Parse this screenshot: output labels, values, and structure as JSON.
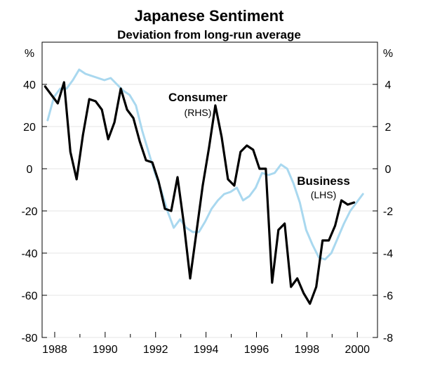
{
  "chart_data": {
    "type": "line",
    "title": "Japanese Sentiment",
    "subtitle": "Deviation from long-run average",
    "left_axis": {
      "unit": "%",
      "range": [
        -80,
        40
      ],
      "ticks": [
        40,
        20,
        0,
        -20,
        -40,
        -60,
        -80
      ],
      "tick_labels": [
        "40",
        "20",
        "0",
        "-20",
        "-40",
        "-60",
        "-80"
      ]
    },
    "right_axis": {
      "unit": "%",
      "range": [
        -8,
        4
      ],
      "ticks": [
        4,
        2,
        0,
        -2,
        -4,
        -6,
        -8
      ],
      "tick_labels": [
        "4",
        "2",
        "0",
        "-2",
        "-4",
        "-6",
        "-8"
      ]
    },
    "x_axis": {
      "range": [
        1987.5,
        2000.8
      ],
      "ticks": [
        1988,
        1990,
        1992,
        1994,
        1996,
        1998,
        2000
      ],
      "tick_labels": [
        "1988",
        "1990",
        "1992",
        "1994",
        "1996",
        "1998",
        "2000"
      ],
      "minor_ticks": [
        1989,
        1991,
        1993,
        1995,
        1997,
        1999
      ]
    },
    "series": [
      {
        "name": "Business",
        "axis": "left",
        "color": "#a9d8ef",
        "annotation": "Business",
        "annotation_sub": "(LHS)",
        "points": [
          [
            1987.72,
            23
          ],
          [
            1987.97,
            34
          ],
          [
            1988.22,
            38
          ],
          [
            1988.47,
            38
          ],
          [
            1988.72,
            42
          ],
          [
            1988.97,
            47
          ],
          [
            1989.22,
            45
          ],
          [
            1989.47,
            44
          ],
          [
            1989.72,
            43
          ],
          [
            1989.97,
            42
          ],
          [
            1990.22,
            43
          ],
          [
            1990.47,
            40
          ],
          [
            1990.72,
            37
          ],
          [
            1990.97,
            35
          ],
          [
            1991.22,
            30
          ],
          [
            1991.47,
            18
          ],
          [
            1991.72,
            8
          ],
          [
            1991.97,
            -2
          ],
          [
            1992.22,
            -10
          ],
          [
            1992.47,
            -20
          ],
          [
            1992.72,
            -28
          ],
          [
            1992.97,
            -24
          ],
          [
            1993.22,
            -28
          ],
          [
            1993.47,
            -30
          ],
          [
            1993.72,
            -30
          ],
          [
            1993.97,
            -25
          ],
          [
            1994.22,
            -19
          ],
          [
            1994.47,
            -15
          ],
          [
            1994.72,
            -12
          ],
          [
            1994.97,
            -11
          ],
          [
            1995.22,
            -9
          ],
          [
            1995.47,
            -15
          ],
          [
            1995.72,
            -13
          ],
          [
            1995.97,
            -9
          ],
          [
            1996.22,
            -2
          ],
          [
            1996.47,
            -3
          ],
          [
            1996.72,
            -2
          ],
          [
            1996.97,
            2
          ],
          [
            1997.22,
            0
          ],
          [
            1997.47,
            -7
          ],
          [
            1997.72,
            -16
          ],
          [
            1997.97,
            -29
          ],
          [
            1998.22,
            -36
          ],
          [
            1998.47,
            -42
          ],
          [
            1998.72,
            -43
          ],
          [
            1998.97,
            -40
          ],
          [
            1999.22,
            -33
          ],
          [
            1999.47,
            -26
          ],
          [
            1999.72,
            -20
          ],
          [
            1999.97,
            -16
          ],
          [
            2000.22,
            -12
          ]
        ]
      },
      {
        "name": "Consumer",
        "axis": "right",
        "color": "#000000",
        "annotation": "Consumer",
        "annotation_sub": "(RHS)",
        "points": [
          [
            1987.62,
            3.9
          ],
          [
            1987.87,
            3.5
          ],
          [
            1988.12,
            3.1
          ],
          [
            1988.37,
            4.1
          ],
          [
            1988.62,
            0.8
          ],
          [
            1988.87,
            -0.5
          ],
          [
            1989.12,
            1.6
          ],
          [
            1989.37,
            3.3
          ],
          [
            1989.62,
            3.2
          ],
          [
            1989.87,
            2.8
          ],
          [
            1990.12,
            1.4
          ],
          [
            1990.37,
            2.2
          ],
          [
            1990.62,
            3.8
          ],
          [
            1990.87,
            2.8
          ],
          [
            1991.12,
            2.4
          ],
          [
            1991.37,
            1.3
          ],
          [
            1991.62,
            0.4
          ],
          [
            1991.87,
            0.3
          ],
          [
            1992.12,
            -0.6
          ],
          [
            1992.37,
            -1.9
          ],
          [
            1992.62,
            -2.0
          ],
          [
            1992.87,
            -0.4
          ],
          [
            1993.12,
            -2.6
          ],
          [
            1993.37,
            -5.2
          ],
          [
            1993.62,
            -3.0
          ],
          [
            1993.87,
            -0.8
          ],
          [
            1994.12,
            1.0
          ],
          [
            1994.37,
            3.0
          ],
          [
            1994.62,
            1.5
          ],
          [
            1994.87,
            -0.5
          ],
          [
            1995.12,
            -0.8
          ],
          [
            1995.37,
            0.8
          ],
          [
            1995.62,
            1.1
          ],
          [
            1995.87,
            0.9
          ],
          [
            1996.12,
            0.0
          ],
          [
            1996.37,
            0.0
          ],
          [
            1996.62,
            -5.4
          ],
          [
            1996.87,
            -2.9
          ],
          [
            1997.12,
            -2.6
          ],
          [
            1997.37,
            -5.6
          ],
          [
            1997.62,
            -5.2
          ],
          [
            1997.87,
            -5.9
          ],
          [
            1998.12,
            -6.4
          ],
          [
            1998.37,
            -5.6
          ],
          [
            1998.62,
            -3.4
          ],
          [
            1998.87,
            -3.4
          ],
          [
            1999.12,
            -2.7
          ],
          [
            1999.37,
            -1.5
          ],
          [
            1999.62,
            -1.7
          ],
          [
            1999.87,
            -1.6
          ]
        ]
      }
    ]
  }
}
